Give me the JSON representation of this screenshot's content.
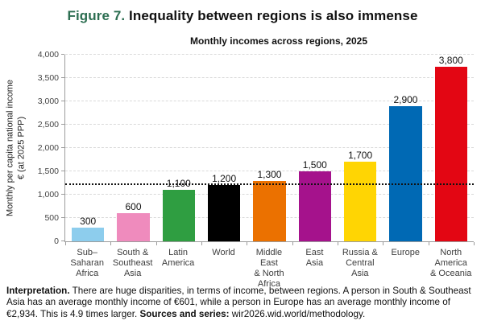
{
  "header": {
    "figure_label": "Figure 7.",
    "title": " Inequality between regions is also immense",
    "figure_label_color": "#2C6E51"
  },
  "chart_data": {
    "type": "bar",
    "title": "Monthly incomes across regions, 2025",
    "ylabel_line1": "Monthly per capita national income",
    "ylabel_line2": "€ (at 2025 PPP)",
    "ylim": [
      0,
      4000
    ],
    "grid": "horizontal dashed, on",
    "legend": "none",
    "yticks": [
      0,
      500,
      1000,
      1500,
      2000,
      2500,
      3000,
      3500,
      4000
    ],
    "ytick_labels": [
      "0",
      "500",
      "1,000",
      "1,500",
      "2,000",
      "2,500",
      "3,000",
      "3,500",
      "4,000"
    ],
    "reference_line_value": 1200,
    "categories": [
      "Sub–\nSaharan\nAfrica",
      "South &\nSoutheast\nAsia",
      "Latin\nAmerica",
      "World",
      "Middle East\n& North\nAfrica",
      "East\nAsia",
      "Russia &\nCentral\nAsia",
      "Europe",
      "North\nAmerica\n& Oceania"
    ],
    "values": [
      300,
      600,
      1100,
      1200,
      1300,
      1500,
      1700,
      2900,
      3800
    ],
    "value_labels": [
      "300",
      "600",
      "1,100",
      "1,200",
      "1,300",
      "1,500",
      "1,700",
      "2,900",
      "3,800"
    ],
    "colors": [
      "#8DCDED",
      "#EF8BBD",
      "#2F9E41",
      "#000000",
      "#EB7100",
      "#A5128C",
      "#FFD503",
      "#0069B4",
      "#E30613"
    ]
  },
  "footer": {
    "parts": [
      {
        "text": "Interpretation.",
        "bold": true
      },
      {
        "text": " There are huge disparities, in terms of income, between regions. A person in South & Southeast Asia has an average monthly income of €601, while a person in Europe has an average monthly income of €2,934. This is 4.9 times larger. ",
        "bold": false
      },
      {
        "text": "Sources and series:",
        "bold": true
      },
      {
        "text": " wir2026.wid.world/methodology.",
        "bold": false
      }
    ]
  }
}
